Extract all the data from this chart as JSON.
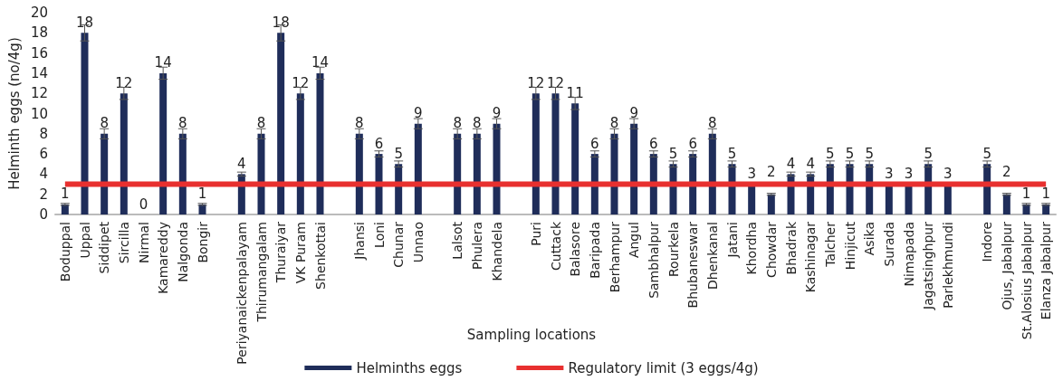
{
  "chart_data": {
    "type": "bar",
    "xlabel": "Sampling locations",
    "ylabel": "Helminth eggs (no/4g)",
    "categories": [
      "Boduppal",
      "Uppal",
      "Siddipet",
      "Sircilla",
      "Nirmal",
      "Kamareddy",
      "Nalgonda",
      "Bongir",
      null,
      "Periyanaickenpalayam",
      "Thirumangalam",
      "Thuraiyar",
      "VK Puram",
      "Shenkottai",
      null,
      "Jhansi",
      "Loni",
      "Chunar",
      "Unnao",
      null,
      "Lalsot",
      "Phulera",
      "Khandela",
      null,
      "Puri",
      "Cuttack",
      "Balasore",
      "Baripada",
      "Berhampur",
      "Angul",
      "Sambhalpur",
      "Rourkela",
      "Bhubaneswar",
      "Dhenkanal",
      "Jatani",
      "Khordha",
      "Chowdar",
      "Bhadrak",
      "Kashinagar",
      "Talcher",
      "Hinjicut",
      "Asika",
      "Surada",
      "Nimapada",
      "Jagatsinghpur",
      "Parlekhmundi",
      null,
      "Indore",
      "Ojus, Jabalpur",
      "St.Alosius Jabalpur",
      "Elanza Jabalpur"
    ],
    "series": [
      {
        "name": "Helminths eggs",
        "color": "#1f2d5a",
        "values": [
          1,
          18,
          8,
          12,
          0,
          14,
          8,
          1,
          null,
          4,
          8,
          18,
          12,
          14,
          null,
          8,
          6,
          5,
          9,
          null,
          8,
          8,
          9,
          null,
          12,
          12,
          11,
          6,
          8,
          9,
          6,
          5,
          6,
          8,
          5,
          3,
          2,
          4,
          4,
          5,
          5,
          5,
          3,
          3,
          5,
          3,
          null,
          5,
          2,
          1,
          1
        ],
        "value_labels": [
          "1",
          "18",
          "8",
          "12",
          "0",
          "14",
          "8",
          "1",
          null,
          "4",
          "8",
          "18",
          "12",
          "14",
          null,
          "8",
          "6",
          "5",
          "9",
          null,
          "8",
          "8",
          "9",
          null,
          "12",
          "12",
          "11",
          "6",
          "8",
          "9",
          "6",
          "5",
          "6",
          "8",
          "5",
          "3",
          "2",
          "4",
          "4",
          "5",
          "5",
          "5",
          "3",
          "3",
          "5",
          "3",
          null,
          "5",
          "2",
          "1",
          "1"
        ],
        "errors": [
          0.1,
          0.8,
          0.5,
          0.6,
          null,
          0.6,
          0.5,
          0.1,
          null,
          0.2,
          0.5,
          0.8,
          0.6,
          0.6,
          null,
          0.5,
          0.3,
          0.3,
          0.5,
          null,
          0.5,
          0.5,
          0.5,
          null,
          0.6,
          0.6,
          0.6,
          0.3,
          0.5,
          0.5,
          0.3,
          0.3,
          0.3,
          0.5,
          0.3,
          null,
          0.1,
          0.2,
          0.2,
          0.3,
          0.3,
          0.3,
          null,
          null,
          0.3,
          null,
          null,
          0.3,
          0.1,
          0.1,
          0.1
        ]
      },
      {
        "name": "Regulatory limit (3 eggs/4g)",
        "type": "line",
        "color": "#e8302f",
        "marker": "none",
        "line_style": "solid",
        "values": [
          3,
          3,
          3,
          3,
          3,
          3,
          3,
          3,
          3,
          3,
          3,
          3,
          3,
          3,
          3,
          3,
          3,
          3,
          3,
          3,
          3,
          3,
          3,
          3,
          3,
          3,
          3,
          3,
          3,
          3,
          3,
          3,
          3,
          3,
          3,
          3,
          3,
          3,
          3,
          3,
          3,
          3,
          3,
          3,
          3,
          3,
          3,
          3,
          3,
          3,
          3
        ]
      }
    ],
    "ylim": [
      0,
      20
    ],
    "yticks": [
      0,
      2,
      4,
      6,
      8,
      10,
      12,
      14,
      16,
      18,
      20
    ],
    "grid": false,
    "legend": "bottom"
  }
}
